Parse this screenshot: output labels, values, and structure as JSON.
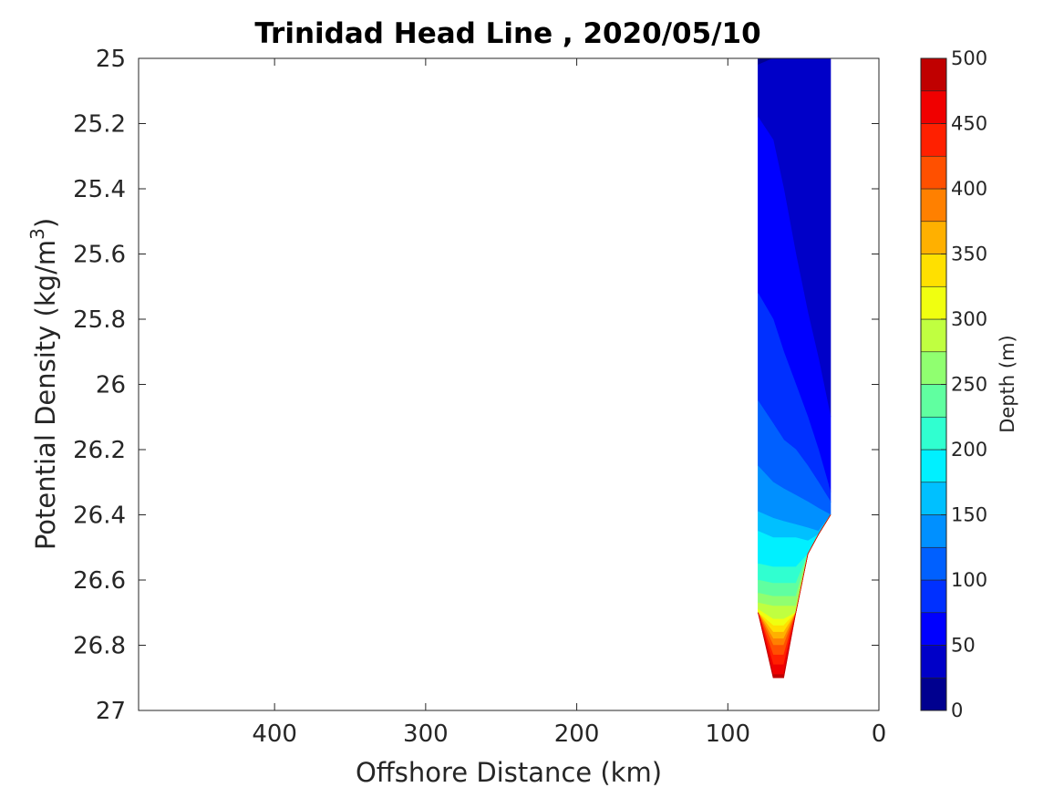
{
  "chart_data": {
    "type": "contour",
    "title": "Trinidad Head Line , 2020/05/10",
    "xlabel": "Offshore Distance (km)",
    "ylabel": "Potential Density (kg/m",
    "ylabel_sup": "3",
    "ylabel_close": ")",
    "xlim": [
      490,
      0
    ],
    "x_reversed": true,
    "ylim": [
      25,
      27
    ],
    "y_reversed": true,
    "x_ticks": [
      400,
      300,
      200,
      100,
      0
    ],
    "x_tick_labels": [
      "400",
      "300",
      "200",
      "100",
      "0"
    ],
    "y_ticks": [
      25,
      25.2,
      25.4,
      25.6,
      25.8,
      26,
      26.2,
      26.4,
      26.6,
      26.8,
      27
    ],
    "y_tick_labels": [
      "25",
      "25.2",
      "25.4",
      "25.6",
      "25.8",
      "26",
      "26.2",
      "26.4",
      "26.6",
      "26.8",
      "27"
    ],
    "grid": false,
    "colorbar": {
      "label": "Depth (m)",
      "range": [
        0,
        500
      ],
      "levels": [
        0,
        25,
        50,
        75,
        100,
        125,
        150,
        175,
        200,
        225,
        250,
        275,
        300,
        325,
        350,
        375,
        400,
        425,
        450,
        475,
        500
      ],
      "tick_values": [
        0,
        50,
        100,
        150,
        200,
        250,
        300,
        350,
        400,
        450,
        500
      ],
      "tick_labels": [
        "0",
        "50",
        "100",
        "150",
        "200",
        "250",
        "300",
        "350",
        "400",
        "450",
        "500"
      ],
      "colors": [
        "#00008f",
        "#0000c8",
        "#0000ff",
        "#0030ff",
        "#0060ff",
        "#0090ff",
        "#00c0ff",
        "#00f0ff",
        "#30ffd0",
        "#60ffa0",
        "#90ff70",
        "#c0ff40",
        "#f0ff10",
        "#ffe000",
        "#ffb000",
        "#ff8000",
        "#ff5000",
        "#ff2000",
        "#f00000",
        "#c00000"
      ]
    },
    "stations_km": [
      80,
      70,
      63,
      55,
      47,
      40,
      32
    ],
    "max_density": [
      26.7,
      26.9,
      26.9,
      26.7,
      26.52,
      26.46,
      26.4
    ],
    "depth_levels": [
      {
        "z": 25,
        "density": [
          25.02,
          25.0,
          25.0,
          25.0,
          25.0,
          25.0,
          25.0
        ]
      },
      {
        "z": 50,
        "density": [
          25.18,
          25.25,
          25.4,
          25.6,
          25.78,
          25.92,
          26.1
        ]
      },
      {
        "z": 75,
        "density": [
          25.72,
          25.8,
          25.9,
          26.0,
          26.1,
          26.2,
          26.33
        ]
      },
      {
        "z": 100,
        "density": [
          26.05,
          26.12,
          26.17,
          26.2,
          26.25,
          26.3,
          26.36
        ]
      },
      {
        "z": 125,
        "density": [
          26.25,
          26.3,
          26.32,
          26.34,
          26.36,
          26.38,
          26.4
        ]
      },
      {
        "z": 150,
        "density": [
          26.39,
          26.41,
          26.42,
          26.43,
          26.44,
          26.45,
          26.46
        ]
      },
      {
        "z": 175,
        "density": [
          26.45,
          26.47,
          26.47,
          26.47,
          26.48,
          26.49,
          26.5
        ]
      },
      {
        "z": 200,
        "density": [
          26.55,
          26.56,
          26.56,
          26.56,
          26.56,
          26.56,
          26.56
        ]
      },
      {
        "z": 225,
        "density": [
          26.6,
          26.61,
          26.61,
          26.61,
          26.61,
          26.61,
          26.61
        ]
      },
      {
        "z": 250,
        "density": [
          26.64,
          26.65,
          26.65,
          26.65,
          26.65,
          26.65,
          26.65
        ]
      },
      {
        "z": 275,
        "density": [
          26.67,
          26.68,
          26.68,
          26.68,
          26.68,
          26.68,
          26.68
        ]
      },
      {
        "z": 300,
        "density": [
          26.69,
          26.72,
          26.72,
          26.7,
          26.7,
          26.7,
          26.7
        ]
      },
      {
        "z": 325,
        "density": [
          26.71,
          26.74,
          26.74,
          26.72,
          26.72,
          26.72,
          26.72
        ]
      },
      {
        "z": 350,
        "density": [
          26.73,
          26.76,
          26.76,
          26.74,
          26.74,
          26.74,
          26.74
        ]
      },
      {
        "z": 375,
        "density": [
          26.75,
          26.78,
          26.78,
          26.76,
          26.76,
          26.76,
          26.76
        ]
      },
      {
        "z": 400,
        "density": [
          26.77,
          26.8,
          26.8,
          26.78,
          26.78,
          26.78,
          26.78
        ]
      },
      {
        "z": 425,
        "density": [
          26.8,
          26.83,
          26.83,
          26.82,
          26.82,
          26.82,
          26.82
        ]
      },
      {
        "z": 450,
        "density": [
          26.83,
          26.86,
          26.86,
          26.85,
          26.85,
          26.85,
          26.85
        ]
      },
      {
        "z": 475,
        "density": [
          26.87,
          26.89,
          26.89,
          26.89,
          26.89,
          26.89,
          26.89
        ]
      }
    ]
  }
}
